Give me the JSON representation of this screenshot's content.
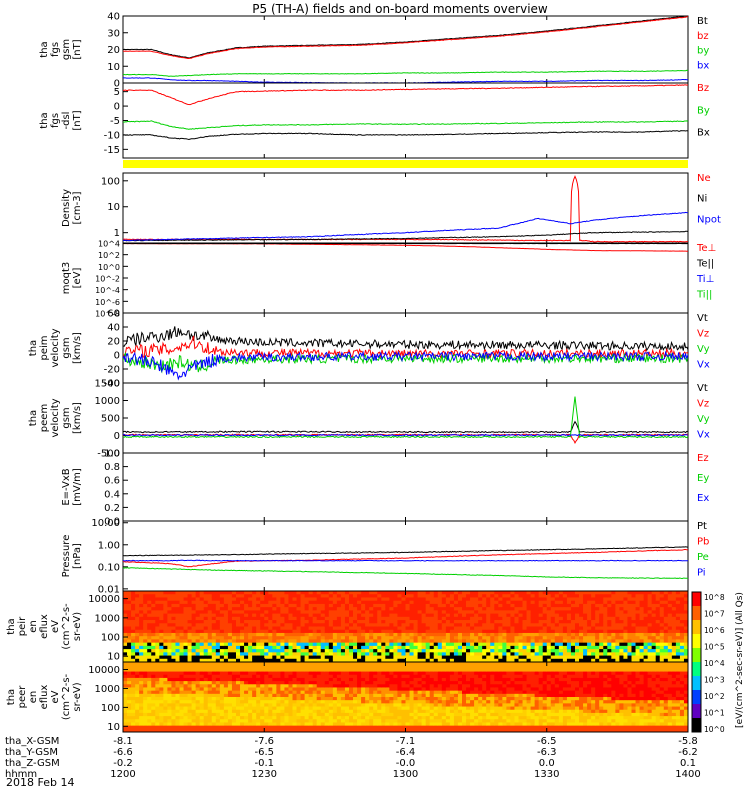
{
  "title": "P5 (TH-A) fields and on-board moments overview",
  "date_label": "2018 Feb 14",
  "colorbar_label": "[eV/(cm^2-sec-sr-eV)] (All Qs)",
  "colorbar_ticks": [
    "10^8",
    "10^7",
    "10^6",
    "10^5",
    "10^4",
    "10^3",
    "10^2",
    "10^1",
    "10^0"
  ],
  "colors": {
    "black": "#000000",
    "red": "#ff0000",
    "green": "#00d000",
    "blue": "#0000ff",
    "yellow": "#ffff00"
  },
  "x_axis": {
    "row_labels": [
      "tha_X-GSM",
      "tha_Y-GSM",
      "tha_Z-GSM",
      "hhmm"
    ],
    "tick_time_minutes": [
      0,
      30,
      60,
      90,
      120
    ],
    "rows": [
      [
        "-8.1",
        "-7.6",
        "-7.1",
        "-6.5",
        "-5.8"
      ],
      [
        "-6.6",
        "-6.5",
        "-6.4",
        "-6.3",
        "-6.2"
      ],
      [
        "-0.2",
        "-0.1",
        "-0.0",
        "0.0",
        "0.1"
      ],
      [
        "1200",
        "1230",
        "1300",
        "1330",
        "1400"
      ]
    ]
  },
  "chart_data": [
    {
      "type": "line",
      "ylabel": [
        "tha",
        "fgs",
        "gsm",
        "[nT]"
      ],
      "ylim": [
        0,
        40
      ],
      "yticks": [
        0,
        10,
        20,
        30,
        40
      ],
      "yticklabels": [
        "0",
        "10",
        "20",
        "30",
        "40"
      ],
      "legend": [
        {
          "label": "Bt",
          "color": "black"
        },
        {
          "label": "bz",
          "color": "red"
        },
        {
          "label": "by",
          "color": "green"
        },
        {
          "label": "bx",
          "color": "blue"
        }
      ],
      "series": [
        {
          "name": "Bt",
          "color": "black",
          "x": [
            0,
            6,
            10,
            14,
            18,
            24,
            30,
            40,
            50,
            60,
            70,
            80,
            90,
            100,
            110,
            120
          ],
          "y": [
            20,
            20,
            17,
            15,
            18,
            21,
            22,
            22.5,
            23,
            24.5,
            26.5,
            28.5,
            31,
            34,
            37,
            40
          ]
        },
        {
          "name": "bz",
          "color": "red",
          "x": [
            0,
            6,
            10,
            14,
            18,
            24,
            30,
            40,
            50,
            60,
            70,
            80,
            90,
            100,
            110,
            120
          ],
          "y": [
            19,
            19,
            16.5,
            14.5,
            17.5,
            20.5,
            21.5,
            22,
            22.5,
            24,
            26,
            28,
            30.5,
            33.5,
            36.5,
            39.5
          ]
        },
        {
          "name": "by",
          "color": "green",
          "x": [
            0,
            6,
            10,
            14,
            18,
            24,
            30,
            40,
            50,
            60,
            70,
            80,
            90,
            100,
            110,
            120
          ],
          "y": [
            5,
            5,
            4,
            4.5,
            5,
            5.5,
            5.5,
            5.5,
            5.5,
            6,
            6,
            6.5,
            6.5,
            7,
            7,
            7.5
          ]
        },
        {
          "name": "bx",
          "color": "blue",
          "x": [
            0,
            6,
            10,
            14,
            18,
            24,
            30,
            40,
            50,
            60,
            70,
            80,
            90,
            100,
            110,
            120
          ],
          "y": [
            3,
            3,
            2,
            1.5,
            1.5,
            1,
            0.5,
            0.2,
            0,
            0,
            0.5,
            1,
            1,
            1.5,
            1.5,
            2
          ]
        }
      ]
    },
    {
      "type": "line",
      "ylabel": [
        "tha",
        "fgs",
        "-dsl",
        "[nT]"
      ],
      "ylim": [
        -18,
        8
      ],
      "yticks": [
        -15,
        -10,
        -5,
        0,
        5
      ],
      "yticklabels": [
        "-15",
        "-10",
        "-5",
        "0",
        "5"
      ],
      "legend": [
        {
          "label": "Bz",
          "color": "red"
        },
        {
          "label": "By",
          "color": "green"
        },
        {
          "label": "Bx",
          "color": "black"
        }
      ],
      "series": [
        {
          "name": "Bz",
          "color": "red",
          "x": [
            0,
            6,
            10,
            14,
            18,
            24,
            30,
            40,
            50,
            60,
            70,
            80,
            90,
            100,
            110,
            120
          ],
          "y": [
            5.5,
            5.5,
            3,
            0.5,
            2.5,
            5,
            5.2,
            5.5,
            5.5,
            5.8,
            6,
            6.2,
            6.5,
            6.8,
            7,
            7.3
          ]
        },
        {
          "name": "By",
          "color": "green",
          "x": [
            0,
            6,
            10,
            14,
            18,
            24,
            30,
            40,
            50,
            60,
            70,
            80,
            90,
            100,
            110,
            120
          ],
          "y": [
            -5.5,
            -5.2,
            -7,
            -8,
            -7.5,
            -6.8,
            -6.5,
            -6.5,
            -6.2,
            -6.3,
            -6.2,
            -6,
            -5.8,
            -5.5,
            -5.5,
            -5.2
          ]
        },
        {
          "name": "Bx",
          "color": "black",
          "x": [
            0,
            6,
            10,
            14,
            18,
            24,
            30,
            40,
            50,
            60,
            70,
            80,
            90,
            100,
            110,
            120
          ],
          "y": [
            -10,
            -10,
            -11,
            -11.5,
            -10.5,
            -9.8,
            -9.5,
            -9.5,
            -10,
            -10,
            -9.8,
            -9.5,
            -9.2,
            -9,
            -9,
            -8.5
          ]
        }
      ]
    },
    {
      "type": "line",
      "log": true,
      "ylabel": [
        "Density",
        "[cm-3]"
      ],
      "ylim": [
        0.4,
        200
      ],
      "yticks": [
        1,
        10,
        100
      ],
      "yticklabels": [
        "1",
        "10",
        "100"
      ],
      "legend": [
        {
          "label": "Ne",
          "color": "red"
        },
        {
          "label": "Ni",
          "color": "black"
        },
        {
          "label": "Npot",
          "color": "blue"
        }
      ],
      "series": [
        {
          "name": "Ne",
          "color": "red",
          "x": [
            0,
            20,
            40,
            60,
            80,
            86,
            90,
            95,
            96,
            97,
            98,
            100,
            120
          ],
          "y": [
            0.55,
            0.55,
            0.55,
            0.55,
            0.52,
            0.5,
            0.5,
            0.5,
            150,
            0.5,
            0.5,
            0.45,
            0.45
          ]
        },
        {
          "name": "Ni",
          "color": "black",
          "x": [
            0,
            20,
            40,
            60,
            80,
            90,
            95,
            100,
            120
          ],
          "y": [
            0.5,
            0.52,
            0.55,
            0.6,
            0.7,
            0.8,
            0.9,
            1,
            1.1
          ]
        },
        {
          "name": "Npot",
          "color": "blue",
          "x": [
            0,
            20,
            40,
            60,
            80,
            85,
            88,
            95,
            100,
            110,
            120
          ],
          "y": [
            0.5,
            0.6,
            0.7,
            1,
            1.5,
            2.5,
            3.5,
            2.2,
            3,
            4.5,
            6
          ]
        }
      ]
    },
    {
      "type": "line",
      "log": true,
      "ylabel": [
        "moqt3",
        "[eV]"
      ],
      "ylim": [
        1e-08,
        10000
      ],
      "yticks": [
        1e-08,
        1e-06,
        0.0001,
        0.01,
        1,
        100,
        10000
      ],
      "yticklabels": [
        "10^-8",
        "10^-6",
        "10^-4",
        "10^-2",
        "10^0",
        "10^2",
        "10^4"
      ],
      "legend": [
        {
          "label": "Te⊥",
          "color": "red"
        },
        {
          "label": "Te||",
          "color": "black"
        },
        {
          "label": "Ti⊥",
          "color": "blue"
        },
        {
          "label": "Ti||",
          "color": "green"
        }
      ],
      "series": [
        {
          "name": "Te⊥",
          "color": "red",
          "x": [
            0,
            30,
            60,
            80,
            90,
            100,
            120
          ],
          "y": [
            8000,
            7000,
            4000,
            1500,
            800,
            500,
            400
          ]
        },
        {
          "name": "Te||",
          "color": "black",
          "x": [
            0,
            30,
            60,
            80,
            90,
            100,
            120
          ],
          "y": [
            8000,
            8000,
            8000,
            8000,
            8000,
            8000,
            8000
          ]
        }
      ]
    },
    {
      "type": "line",
      "ylabel": [
        "tha",
        "peim",
        "velocity",
        "gsm",
        "[km/s]"
      ],
      "ylim": [
        -40,
        60
      ],
      "yticks": [
        -40,
        -20,
        0,
        20,
        40,
        60
      ],
      "yticklabels": [
        "-40",
        "-20",
        "0",
        "20",
        "40",
        "60"
      ],
      "legend": [
        {
          "label": "Vt",
          "color": "black"
        },
        {
          "label": "Vz",
          "color": "red"
        },
        {
          "label": "Vy",
          "color": "green"
        },
        {
          "label": "Vx",
          "color": "blue"
        }
      ],
      "series": [
        {
          "name": "Vt",
          "color": "black",
          "x": [
            0,
            5,
            10,
            12,
            15,
            20,
            30,
            60,
            90,
            120
          ],
          "y": [
            18,
            25,
            30,
            35,
            28,
            22,
            18,
            15,
            14,
            12
          ]
        },
        {
          "name": "Vz",
          "color": "red",
          "x": [
            0,
            10,
            15,
            20,
            30,
            60,
            90,
            120
          ],
          "y": [
            5,
            8,
            18,
            5,
            3,
            2,
            2,
            2
          ]
        },
        {
          "name": "Vy",
          "color": "green",
          "x": [
            0,
            8,
            12,
            16,
            20,
            30,
            60,
            90,
            120
          ],
          "y": [
            -5,
            -15,
            -10,
            -18,
            -8,
            -6,
            -5,
            -5,
            -5
          ]
        },
        {
          "name": "Vx",
          "color": "blue",
          "x": [
            0,
            8,
            10,
            12,
            14,
            20,
            30,
            60,
            90,
            120
          ],
          "y": [
            0,
            -15,
            -25,
            -30,
            -20,
            -5,
            -3,
            -2,
            -2,
            -2
          ]
        }
      ]
    },
    {
      "type": "line",
      "ylabel": [
        "tha",
        "peem",
        "velocity",
        "gsm",
        "[km/s]"
      ],
      "ylim": [
        -500,
        1500
      ],
      "yticks": [
        -500,
        0,
        500,
        1000,
        1500
      ],
      "yticklabels": [
        "-500",
        "0",
        "500",
        "1000",
        "1500"
      ],
      "legend": [
        {
          "label": "Vt",
          "color": "black"
        },
        {
          "label": "Vz",
          "color": "red"
        },
        {
          "label": "Vy",
          "color": "green"
        },
        {
          "label": "Vx",
          "color": "blue"
        }
      ],
      "series": [
        {
          "name": "Vt",
          "color": "black",
          "x": [
            0,
            30,
            60,
            90,
            95,
            96,
            97,
            98,
            120
          ],
          "y": [
            100,
            110,
            100,
            100,
            100,
            400,
            100,
            100,
            100
          ]
        },
        {
          "name": "Vz",
          "color": "red",
          "x": [
            0,
            30,
            60,
            95,
            96,
            97,
            98,
            120
          ],
          "y": [
            20,
            20,
            20,
            20,
            -200,
            20,
            20,
            20
          ]
        },
        {
          "name": "Vy",
          "color": "green",
          "x": [
            0,
            30,
            60,
            95,
            96,
            97,
            98,
            120
          ],
          "y": [
            -40,
            -40,
            -40,
            -40,
            1100,
            -40,
            -40,
            -40
          ]
        },
        {
          "name": "Vx",
          "color": "blue",
          "x": [
            0,
            30,
            60,
            120
          ],
          "y": [
            10,
            10,
            10,
            10
          ]
        }
      ]
    },
    {
      "type": "line",
      "ylabel": [
        "E=-VxB",
        "[mV/m]"
      ],
      "ylim": [
        0,
        1
      ],
      "yticks": [
        0,
        0.2,
        0.4,
        0.6,
        0.8,
        1.0
      ],
      "yticklabels": [
        "0.0",
        "0.2",
        "0.4",
        "0.6",
        "0.8",
        "1.0"
      ],
      "legend": [
        {
          "label": "Ez",
          "color": "red"
        },
        {
          "label": "Ey",
          "color": "green"
        },
        {
          "label": "Ex",
          "color": "blue"
        }
      ],
      "series": []
    },
    {
      "type": "line",
      "log": true,
      "ylabel": [
        "Pressure",
        "[nPa]"
      ],
      "ylim": [
        0.008,
        12
      ],
      "yticks": [
        0.01,
        0.1,
        1,
        10
      ],
      "yticklabels": [
        "0.01",
        "0.10",
        "1.00",
        "10.00"
      ],
      "legend": [
        {
          "label": "Pt",
          "color": "black"
        },
        {
          "label": "Pb",
          "color": "red"
        },
        {
          "label": "Pe",
          "color": "green"
        },
        {
          "label": "Pi",
          "color": "blue"
        }
      ],
      "series": [
        {
          "name": "Pt",
          "color": "black",
          "x": [
            0,
            20,
            40,
            60,
            80,
            100,
            120
          ],
          "y": [
            0.32,
            0.35,
            0.4,
            0.45,
            0.55,
            0.65,
            0.8
          ]
        },
        {
          "name": "Pb",
          "color": "red",
          "x": [
            0,
            10,
            14,
            18,
            24,
            40,
            60,
            80,
            100,
            120
          ],
          "y": [
            0.17,
            0.14,
            0.1,
            0.13,
            0.18,
            0.2,
            0.25,
            0.35,
            0.45,
            0.6
          ]
        },
        {
          "name": "Pe",
          "color": "green",
          "x": [
            0,
            10,
            20,
            40,
            60,
            80,
            90,
            100,
            120
          ],
          "y": [
            0.09,
            0.08,
            0.07,
            0.06,
            0.05,
            0.04,
            0.035,
            0.032,
            0.03
          ]
        },
        {
          "name": "Pi",
          "color": "blue",
          "x": [
            0,
            10,
            14,
            18,
            30,
            120
          ],
          "y": [
            0.19,
            0.19,
            0.2,
            0.19,
            0.19,
            0.19
          ]
        }
      ]
    },
    {
      "type": "heatmap",
      "ylabel": [
        "tha",
        "peir",
        "en",
        "eflux",
        "eV",
        "(cm^2-s-",
        "sr-eV)"
      ],
      "yticks": [
        10,
        100,
        1000,
        10000
      ],
      "yticklabels": [
        "10",
        "100",
        "1000",
        "10000"
      ],
      "ylim": [
        5,
        25000
      ]
    },
    {
      "type": "heatmap",
      "ylabel": [
        "tha",
        "peer",
        "en",
        "eflux",
        "eV",
        "(cm^2-s-",
        "sr-eV)"
      ],
      "yticks": [
        10,
        100,
        1000,
        10000
      ],
      "yticklabels": [
        "10",
        "100",
        "1000",
        "10000"
      ],
      "ylim": [
        5,
        25000
      ]
    }
  ]
}
